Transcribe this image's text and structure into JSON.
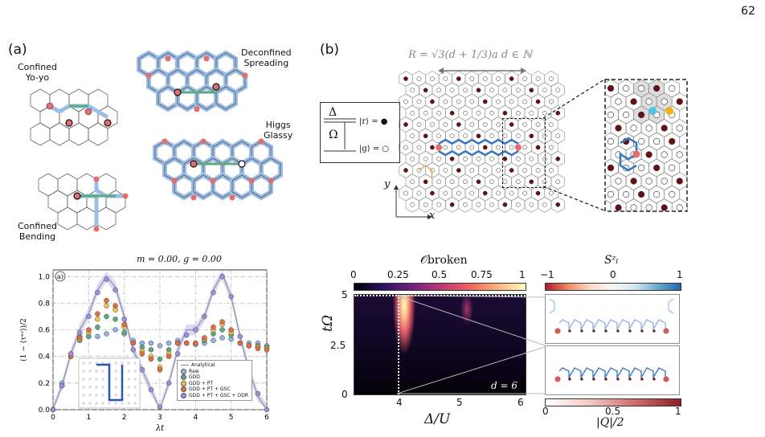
{
  "page_number": "62",
  "panel_a": {
    "label": "(a)",
    "top_labels": {
      "confined_yoyo": [
        "Confined",
        "Yo-yo"
      ],
      "deconfined": [
        "Deconfined",
        "Spreading"
      ],
      "higgs": [
        "Higgs",
        "Glassy"
      ],
      "confined_bending": [
        "Confined",
        "Bending"
      ]
    },
    "plot": {
      "title": "m = 0.00, g = 0.00",
      "badge": "a)",
      "xlabel": "λt",
      "ylabel": "(1 − ⟨τⁿᶻ⟩)/2",
      "xticks": [
        "0",
        "1",
        "2",
        "3",
        "4",
        "5",
        "6"
      ],
      "yticks": [
        "0.0",
        "0.2",
        "0.4",
        "0.6",
        "0.8",
        "1.0"
      ],
      "legend": [
        "Analytical",
        "Raw",
        "GDD",
        "GDD + PT",
        "GDD + PT + GSC",
        "GDD + PT + GSC + ODR"
      ]
    }
  },
  "panel_b": {
    "label": "(b)",
    "formula": "R = √3(d + 1/3)a   d ∈ ℕ",
    "delta": "Δ",
    "omega": "Ω",
    "ket_r": "|r⟩ = ●",
    "ket_g": "|g⟩ = ○",
    "axis_y": "y",
    "axis_x": "x",
    "heatmap": {
      "colorbar_title": "𝒪broken",
      "colorbar_ticks": [
        "0",
        "0.25",
        "0.5",
        "0.75",
        "1"
      ],
      "ylabel": "tΩ",
      "xlabel": "Δ/U",
      "yticks": [
        "0",
        "2.5",
        "5"
      ],
      "xticks": [
        "4",
        "5",
        "6"
      ],
      "annotation": "d = 6"
    },
    "spin_panel": {
      "top_colorbar_title": "Sᶻₗ",
      "top_ticks": [
        "−1",
        "0",
        "1"
      ],
      "bottom_colorbar_title": "|Q|/2",
      "bottom_ticks": [
        "0",
        "0.5",
        "1"
      ]
    }
  },
  "colors": {
    "blue": "#3b78c4",
    "green": "#5aab7f",
    "red": "#e46d6d",
    "maroon": "#6b0d12",
    "orange": "#f0a030",
    "purple": "#8b7fd6"
  },
  "chart_data": {
    "type": "line",
    "title": "m = 0.00, g = 0.00",
    "xlabel": "λt",
    "ylabel": "(1 − ⟨τⁿᶻ⟩)/2",
    "xlim": [
      0,
      6
    ],
    "ylim": [
      0,
      1.05
    ],
    "grid": true,
    "legend_position": "lower-left",
    "x": [
      0,
      0.25,
      0.5,
      0.75,
      1,
      1.25,
      1.5,
      1.75,
      2,
      2.25,
      2.5,
      2.75,
      3,
      3.25,
      3.5,
      3.75,
      4,
      4.25,
      4.5,
      4.75,
      5,
      5.25,
      5.5,
      5.75,
      6
    ],
    "series": [
      {
        "name": "Analytical",
        "values": [
          0,
          0.18,
          0.42,
          0.6,
          0.72,
          0.9,
          1.0,
          0.92,
          0.7,
          0.45,
          0.3,
          0.15,
          0.0,
          0.2,
          0.45,
          0.6,
          0.6,
          0.7,
          0.9,
          1.02,
          0.85,
          0.55,
          0.3,
          0.1,
          0.0
        ]
      },
      {
        "name": "Raw",
        "values": [
          0,
          0.2,
          0.42,
          0.55,
          0.55,
          0.55,
          0.57,
          0.6,
          0.57,
          0.52,
          0.5,
          0.5,
          0.48,
          0.5,
          0.52,
          0.5,
          0.49,
          0.5,
          0.52,
          0.54,
          0.53,
          0.5,
          0.5,
          0.5,
          0.48
        ]
      },
      {
        "name": "GDD",
        "values": [
          0,
          0.18,
          0.4,
          0.52,
          0.55,
          0.62,
          0.7,
          0.68,
          0.58,
          0.5,
          0.47,
          0.45,
          0.38,
          0.45,
          0.5,
          0.5,
          0.5,
          0.52,
          0.57,
          0.6,
          0.56,
          0.5,
          0.48,
          0.48,
          0.47
        ]
      },
      {
        "name": "GDD + PT",
        "values": [
          0,
          0.18,
          0.4,
          0.53,
          0.58,
          0.68,
          0.78,
          0.75,
          0.62,
          0.5,
          0.44,
          0.4,
          0.32,
          0.42,
          0.5,
          0.5,
          0.5,
          0.53,
          0.6,
          0.64,
          0.58,
          0.5,
          0.48,
          0.47,
          0.46
        ]
      },
      {
        "name": "GDD + PT + GSC",
        "values": [
          0,
          0.18,
          0.4,
          0.54,
          0.6,
          0.72,
          0.82,
          0.78,
          0.64,
          0.5,
          0.42,
          0.38,
          0.3,
          0.4,
          0.5,
          0.5,
          0.5,
          0.54,
          0.62,
          0.66,
          0.6,
          0.5,
          0.48,
          0.46,
          0.45
        ]
      },
      {
        "name": "GDD + PT + GSC + ODR",
        "values": [
          0,
          0.18,
          0.42,
          0.58,
          0.7,
          0.88,
          0.98,
          0.9,
          0.68,
          0.45,
          0.3,
          0.15,
          0.02,
          0.2,
          0.42,
          0.56,
          0.6,
          0.7,
          0.88,
          1.0,
          0.85,
          0.55,
          0.3,
          0.12,
          0.0
        ]
      }
    ]
  }
}
